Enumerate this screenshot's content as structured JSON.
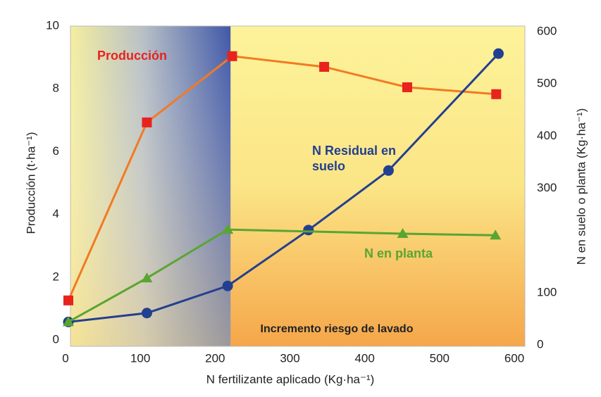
{
  "chart_data": {
    "type": "line",
    "ylabel": "Producción (t·ha⁻¹)",
    "y2label": "N en suelo o planta (Kg·ha⁻¹)",
    "xlabel": "N fertilizante aplicado (Kg·ha⁻¹)",
    "annotation": "Incremento riesgo de lavado",
    "xlim": [
      0,
      600
    ],
    "xticks": [
      0,
      100,
      200,
      300,
      400,
      500,
      600
    ],
    "ylim": [
      0,
      10
    ],
    "yticks": [
      0,
      2,
      4,
      6,
      8,
      10
    ],
    "y2lim": [
      0,
      600
    ],
    "y2ticks": [
      0,
      100,
      300,
      400,
      500,
      600
    ],
    "series": [
      {
        "name": "Producción",
        "color": "#e8231e",
        "line_color": "#f27a22",
        "marker": "square",
        "axis": "y",
        "x": [
          0,
          105,
          219,
          342,
          453,
          572
        ],
        "values": [
          1.26,
          6.93,
          9.04,
          8.7,
          8.05,
          7.83
        ]
      },
      {
        "name": "N Residual en suelo",
        "color": "#233f8f",
        "line_color": "#233f8f",
        "marker": "circle",
        "axis": "y2",
        "x": [
          0,
          105,
          213,
          321,
          428,
          575
        ],
        "values": [
          44,
          61,
          113,
          220,
          334,
          558
        ]
      },
      {
        "name": "N en planta",
        "color": "#5aa532",
        "line_color": "#5aa532",
        "marker": "triangle",
        "axis": "y2",
        "x": [
          0,
          105,
          213,
          447,
          571
        ],
        "values": [
          44,
          128,
          221,
          213,
          210
        ]
      }
    ]
  }
}
